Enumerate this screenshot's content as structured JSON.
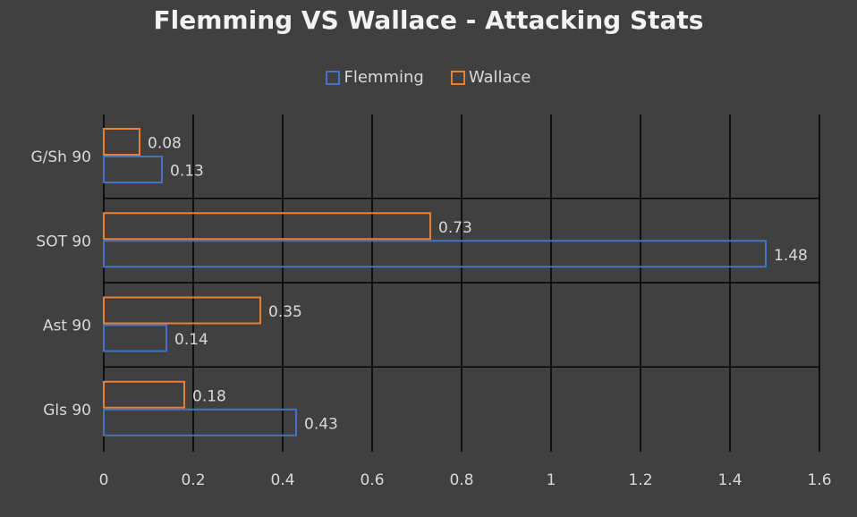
{
  "chart_data": {
    "type": "bar",
    "orientation": "horizontal",
    "title": "Flemming VS Wallace - Attacking Stats",
    "categories": [
      "G/Sh 90",
      "SOT 90",
      "Ast 90",
      "Gls 90"
    ],
    "series": [
      {
        "name": "Wallace",
        "values": [
          0.08,
          0.73,
          0.35,
          0.18
        ],
        "color": "#ed7d31"
      },
      {
        "name": "Flemming",
        "values": [
          0.13,
          1.48,
          0.14,
          0.43
        ],
        "color": "#4472c4"
      }
    ],
    "xlim": [
      0,
      1.6
    ],
    "xticks": [
      "0",
      "0.2",
      "0.4",
      "0.6",
      "0.8",
      "1",
      "1.2",
      "1.4",
      "1.6"
    ],
    "tick_values": [
      0,
      0.2,
      0.4,
      0.6,
      0.8,
      1,
      1.2,
      1.4,
      1.6
    ],
    "legend": [
      "Flemming",
      "Wallace"
    ],
    "legend_position": "top",
    "grid": true,
    "background": "#404040",
    "grid_color": "#000000"
  }
}
